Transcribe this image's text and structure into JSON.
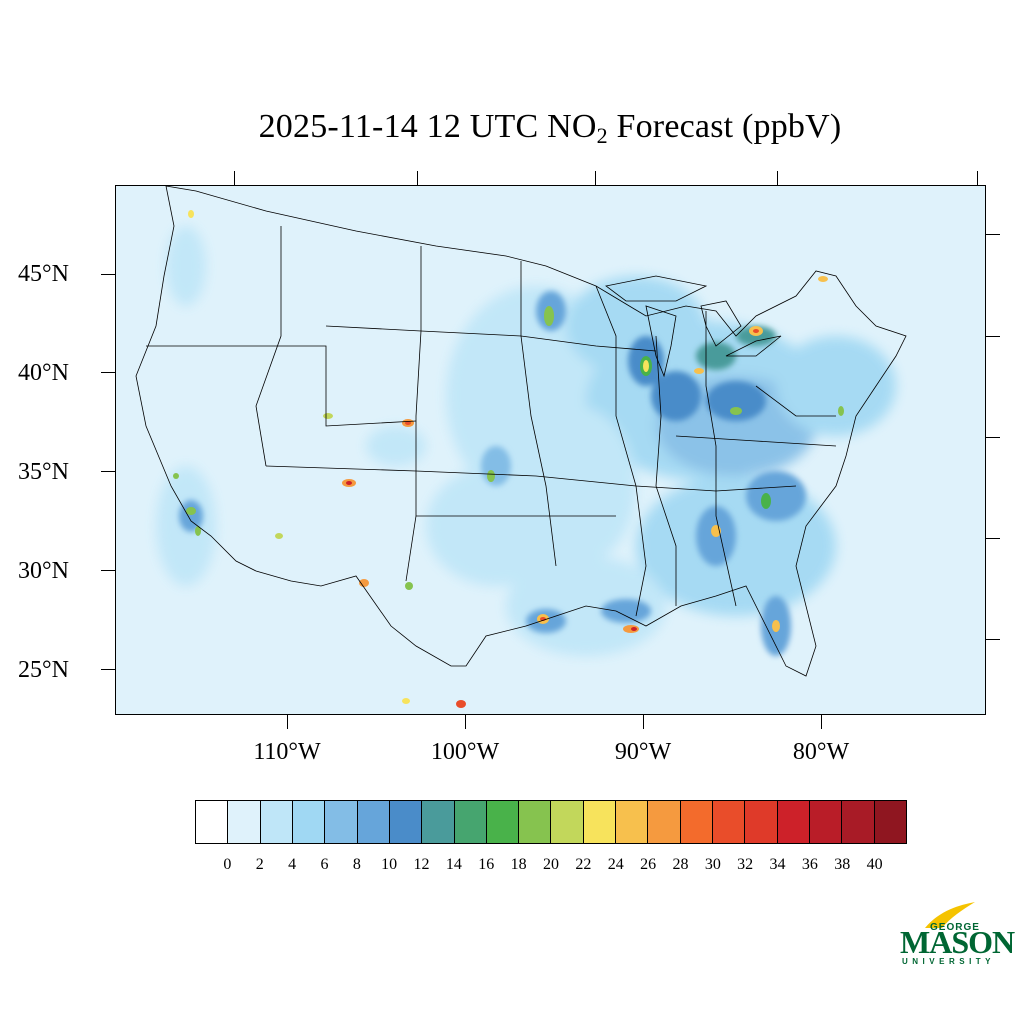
{
  "title": {
    "prefix": "2025-11-14 12 UTC NO",
    "subscript": "2",
    "suffix": " Forecast (ppbV)"
  },
  "map": {
    "region": "Contiguous United States",
    "variable": "NO2",
    "units": "ppbV",
    "background_color": "#dff2fb",
    "lat_labels": [
      "45°N",
      "40°N",
      "35°N",
      "30°N",
      "25°N"
    ],
    "lon_labels": [
      "110°W",
      "100°W",
      "90°W",
      "80°W"
    ]
  },
  "colorbar": {
    "colors": [
      "#ffffff",
      "#dff2fb",
      "#bfe6f8",
      "#a0d8f3",
      "#83bde6",
      "#66a5da",
      "#4a8cc9",
      "#4a9b9b",
      "#46a56f",
      "#49b24a",
      "#86c34f",
      "#c2d75b",
      "#f7e35c",
      "#f7c04d",
      "#f59a3f",
      "#f36b2c",
      "#e94d2a",
      "#df3a29",
      "#cd2129",
      "#b91d28",
      "#a81b26",
      "#8f1620"
    ],
    "labels": [
      "0",
      "2",
      "4",
      "6",
      "8",
      "10",
      "12",
      "14",
      "16",
      "18",
      "20",
      "22",
      "24",
      "26",
      "28",
      "30",
      "32",
      "34",
      "36",
      "38",
      "40"
    ]
  },
  "logo": {
    "line1": "GEORGE",
    "line2": "MASON",
    "line3": "UNIVERSITY",
    "green": "#006633",
    "gold": "#f5c300"
  }
}
